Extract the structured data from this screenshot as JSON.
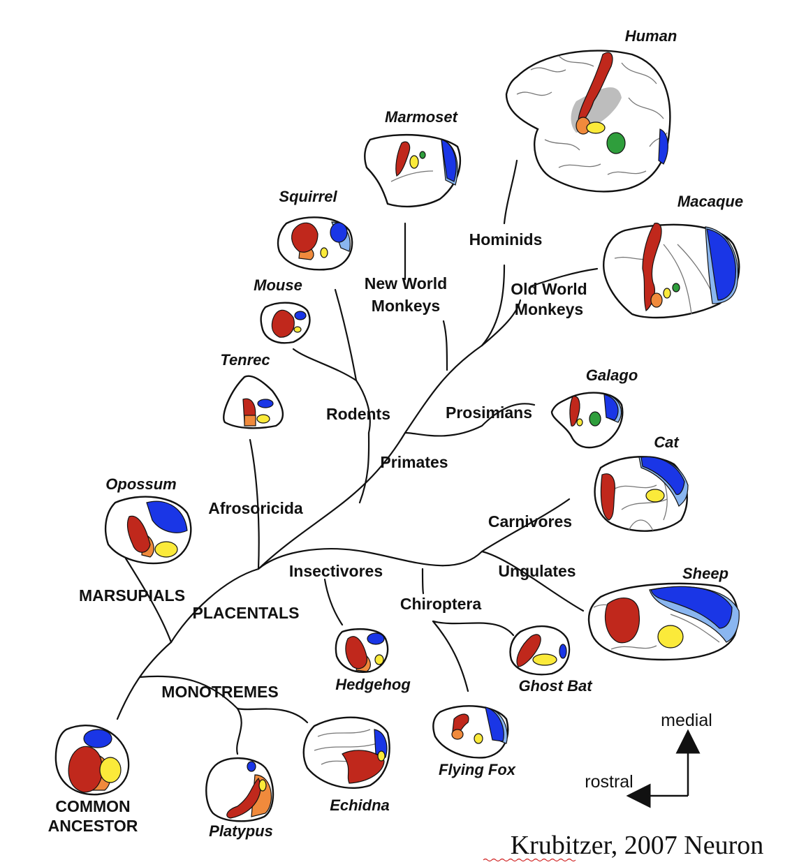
{
  "clades": {
    "hominids": "Hominids",
    "new_world_monkeys_1": "New World",
    "new_world_monkeys_2": "Monkeys",
    "old_world_monkeys_1": "Old World",
    "old_world_monkeys_2": "Monkeys",
    "rodents": "Rodents",
    "prosimians": "Prosimians",
    "primates": "Primates",
    "afrosoricida": "Afrosoricida",
    "carnivores": "Carnivores",
    "insectivores": "Insectivores",
    "ungulates": "Ungulates",
    "marsupials": "MARSUPIALS",
    "placentals": "PLACENTALS",
    "chiroptera": "Chiroptera",
    "monotremes": "MONOTREMES",
    "common_ancestor_1": "COMMON",
    "common_ancestor_2": "ANCESTOR"
  },
  "species": {
    "human": "Human",
    "marmoset": "Marmoset",
    "squirrel": "Squirrel",
    "macaque": "Macaque",
    "mouse": "Mouse",
    "tenrec": "Tenrec",
    "galago": "Galago",
    "cat": "Cat",
    "opossum": "Opossum",
    "sheep": "Sheep",
    "hedgehog": "Hedgehog",
    "ghost_bat": "Ghost Bat",
    "flying_fox": "Flying Fox",
    "echidna": "Echidna",
    "platypus": "Platypus"
  },
  "orientation": {
    "medial": "medial",
    "rostral": "rostral"
  },
  "citation": "Krubitzer, 2007 Neuron",
  "colors": {
    "red": "#c0281c",
    "orange": "#f08a3c",
    "yellow": "#fbea3a",
    "blue": "#1a36e6",
    "light_blue": "#8ab6f0",
    "green": "#2f9e3c"
  }
}
